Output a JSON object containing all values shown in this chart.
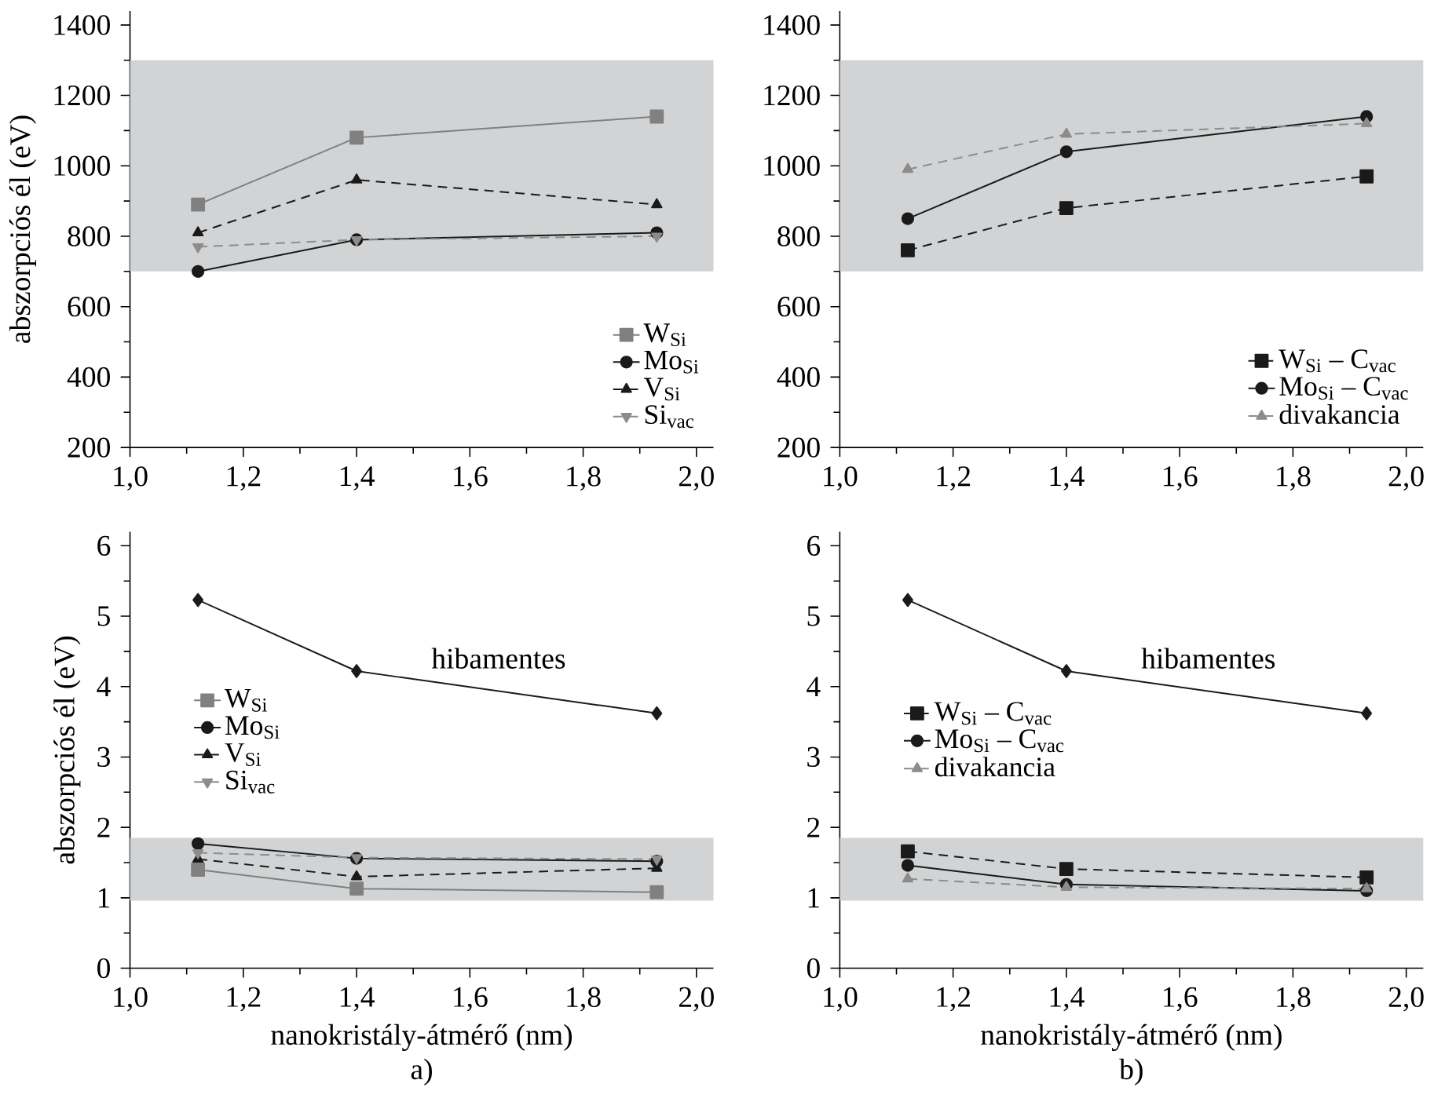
{
  "chart_data": [
    {
      "type": "line",
      "ylabel": "abszorpciós él (eV)",
      "x": [
        1.12,
        1.4,
        1.93
      ],
      "xlim": [
        1.0,
        2.03
      ],
      "ylim": [
        200,
        1440
      ],
      "xticks": [
        {
          "value": 1.0,
          "label": "1,0"
        },
        {
          "value": 1.2,
          "label": "1,2"
        },
        {
          "value": 1.4,
          "label": "1,4"
        },
        {
          "value": 1.6,
          "label": "1,6"
        },
        {
          "value": 1.8,
          "label": "1,8"
        },
        {
          "value": 2.0,
          "label": "2,0"
        }
      ],
      "yticks": [
        200,
        400,
        600,
        800,
        1000,
        1200,
        1400
      ],
      "legend": "bottom right",
      "bands": [
        {
          "axis": "y",
          "from": 700,
          "to": 1300,
          "color": "#d1d3d4"
        }
      ],
      "series": [
        {
          "name": "W$_{Si}$",
          "color": "#808080",
          "marker": "square",
          "line_style": "solid",
          "values": [
            890,
            1080,
            1140
          ]
        },
        {
          "name": "Mo$_{Si}$",
          "color": "#1a1a1a",
          "marker": "circle",
          "line_style": "solid",
          "values": [
            700,
            790,
            810
          ]
        },
        {
          "name": "V$_{Si}$",
          "color": "#1a1a1a",
          "marker": "triangle",
          "line_style": "dashed",
          "values": [
            810,
            960,
            890
          ]
        },
        {
          "name": "Si$_{vac}$",
          "color": "#8c8c8c",
          "marker": "triangle down",
          "line_style": "dashed",
          "values": [
            770,
            790,
            800
          ]
        }
      ]
    },
    {
      "type": "line",
      "x": [
        1.12,
        1.4,
        1.93
      ],
      "xlim": [
        1.0,
        2.03
      ],
      "ylim": [
        200,
        1440
      ],
      "xticks": [
        {
          "value": 1.0,
          "label": "1,0"
        },
        {
          "value": 1.2,
          "label": "1,2"
        },
        {
          "value": 1.4,
          "label": "1,4"
        },
        {
          "value": 1.6,
          "label": "1,6"
        },
        {
          "value": 1.8,
          "label": "1,8"
        },
        {
          "value": 2.0,
          "label": "2,0"
        }
      ],
      "yticks": [
        200,
        400,
        600,
        800,
        1000,
        1200,
        1400
      ],
      "legend": "bottom right",
      "bands": [
        {
          "axis": "y",
          "from": 700,
          "to": 1300,
          "color": "#d1d3d4"
        }
      ],
      "series": [
        {
          "name": "W$_{Si}$ – C$_{vac}$",
          "color": "#1a1a1a",
          "marker": "square",
          "line_style": "dashed",
          "values": [
            760,
            880,
            970
          ]
        },
        {
          "name": "Mo$_{Si}$ – C$_{vac}$",
          "color": "#1a1a1a",
          "marker": "circle",
          "line_style": "solid",
          "values": [
            850,
            1040,
            1140
          ]
        },
        {
          "name": "divakancia",
          "color": "#8c8c8c",
          "marker": "triangle",
          "line_style": "dashed",
          "values": [
            990,
            1090,
            1120
          ]
        }
      ]
    },
    {
      "type": "line",
      "ylabel": "abszorpciós él (eV)",
      "xlabel": "nanokristály-átmérő (nm)",
      "x": [
        1.12,
        1.4,
        1.93
      ],
      "xlim": [
        1.0,
        2.03
      ],
      "ylim": [
        0,
        6.2
      ],
      "xticks": [
        {
          "value": 1.0,
          "label": "1,0"
        },
        {
          "value": 1.2,
          "label": "1,2"
        },
        {
          "value": 1.4,
          "label": "1,4"
        },
        {
          "value": 1.6,
          "label": "1,6"
        },
        {
          "value": 1.8,
          "label": "1,8"
        },
        {
          "value": 2.0,
          "label": "2,0"
        }
      ],
      "yticks": [
        0,
        1,
        2,
        3,
        4,
        5,
        6
      ],
      "legend": "left",
      "bands": [
        {
          "axis": "y",
          "from": 0.96,
          "to": 1.85,
          "color": "#d1d3d4"
        }
      ],
      "annotations": [
        "hibamentes",
        "a)"
      ],
      "series": [
        {
          "color": "#1a1a1a",
          "marker": "diamond",
          "line_style": "solid",
          "values": [
            5.23,
            4.22,
            3.62
          ]
        },
        {
          "name": "W$_{Si}$",
          "color": "#808080",
          "marker": "square",
          "line_style": "solid",
          "values": [
            1.4,
            1.13,
            1.08
          ]
        },
        {
          "name": "Mo$_{Si}$",
          "color": "#1a1a1a",
          "marker": "circle",
          "line_style": "solid",
          "values": [
            1.77,
            1.56,
            1.52
          ]
        },
        {
          "name": "V$_{Si}$",
          "color": "#1a1a1a",
          "marker": "triangle",
          "line_style": "dashed",
          "values": [
            1.55,
            1.3,
            1.42
          ]
        },
        {
          "name": "Si$_{vac}$",
          "color": "#8c8c8c",
          "marker": "triangle down",
          "line_style": "dashed",
          "values": [
            1.64,
            1.57,
            1.55
          ]
        }
      ]
    },
    {
      "type": "line",
      "xlabel": "nanokristály-átmérő (nm)",
      "x": [
        1.12,
        1.4,
        1.93
      ],
      "xlim": [
        1.0,
        2.03
      ],
      "ylim": [
        0,
        6.2
      ],
      "xticks": [
        {
          "value": 1.0,
          "label": "1,0"
        },
        {
          "value": 1.2,
          "label": "1,2"
        },
        {
          "value": 1.4,
          "label": "1,4"
        },
        {
          "value": 1.6,
          "label": "1,6"
        },
        {
          "value": 1.8,
          "label": "1,8"
        },
        {
          "value": 2.0,
          "label": "2,0"
        }
      ],
      "yticks": [
        0,
        1,
        2,
        3,
        4,
        5,
        6
      ],
      "legend": "left",
      "bands": [
        {
          "axis": "y",
          "from": 0.96,
          "to": 1.85,
          "color": "#d1d3d4"
        }
      ],
      "annotations": [
        "hibamentes",
        "b)"
      ],
      "series": [
        {
          "color": "#1a1a1a",
          "marker": "diamond",
          "line_style": "solid",
          "values": [
            5.23,
            4.22,
            3.62
          ]
        },
        {
          "name": "W$_{Si}$ – C$_{vac}$",
          "color": "#1a1a1a",
          "marker": "square",
          "line_style": "dashed",
          "values": [
            1.66,
            1.41,
            1.29
          ]
        },
        {
          "name": "Mo$_{Si}$ – C$_{vac}$",
          "color": "#1a1a1a",
          "marker": "circle",
          "line_style": "solid",
          "values": [
            1.46,
            1.19,
            1.1
          ]
        },
        {
          "name": "divakancia",
          "color": "#8c8c8c",
          "marker": "triangle",
          "line_style": "dashed",
          "values": [
            1.27,
            1.15,
            1.13
          ]
        }
      ]
    }
  ]
}
